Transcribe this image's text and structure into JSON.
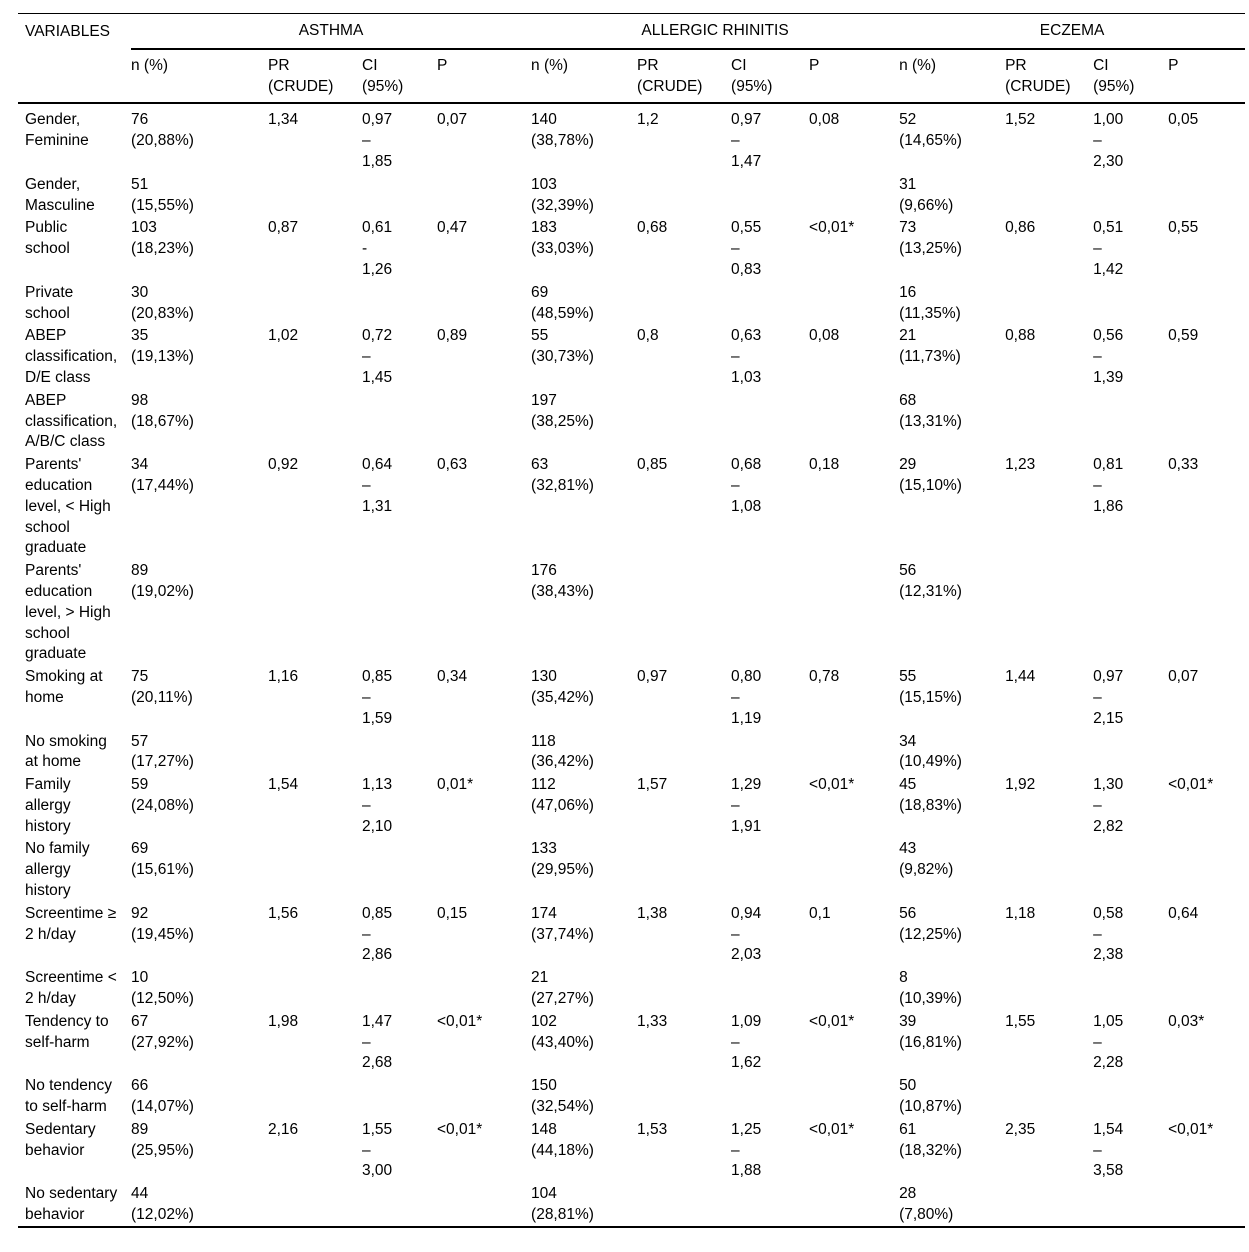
{
  "table": {
    "variables_header": "VARIABLES",
    "groups": [
      {
        "label": "ASTHMA"
      },
      {
        "label": "ALLERGIC RHINITIS"
      },
      {
        "label": "ECZEMA"
      }
    ],
    "sub_headers": [
      "n (%)",
      "PR\n(CRUDE)",
      "CI\n(95%)",
      "P"
    ],
    "rows": [
      {
        "variable": "Gender,\nFeminine",
        "cells": [
          "76\n(20,88%)",
          "1,34",
          "0,97\n–\n1,85",
          "0,07",
          "140\n(38,78%)",
          "1,2",
          "0,97\n–\n1,47",
          "0,08",
          "52\n(14,65%)",
          "1,52",
          "1,00\n–\n2,30",
          "0,05"
        ]
      },
      {
        "variable": "Gender,\nMasculine",
        "cells": [
          "51\n(15,55%)",
          "",
          "",
          "",
          "103\n(32,39%)",
          "",
          "",
          "",
          "31\n(9,66%)",
          "",
          "",
          ""
        ]
      },
      {
        "variable": "Public\nschool",
        "cells": [
          "103\n(18,23%)",
          "0,87",
          "0,61\n-\n1,26",
          "0,47",
          "183\n(33,03%)",
          "0,68",
          "0,55\n–\n0,83",
          "<0,01*",
          "73\n(13,25%)",
          "0,86",
          "0,51\n–\n1,42",
          "0,55"
        ]
      },
      {
        "variable": "Private\nschool",
        "cells": [
          "30\n(20,83%)",
          "",
          "",
          "",
          "69\n(48,59%)",
          "",
          "",
          "",
          "16\n(11,35%)",
          "",
          "",
          ""
        ]
      },
      {
        "variable": "ABEP\nclassification,\nD/E class",
        "cells": [
          "35\n(19,13%)",
          "1,02",
          "0,72\n–\n1,45",
          "0,89",
          "55\n(30,73%)",
          "0,8",
          "0,63\n–\n1,03",
          "0,08",
          "21\n(11,73%)",
          "0,88",
          "0,56\n–\n1,39",
          "0,59"
        ]
      },
      {
        "variable": "ABEP\nclassification,\nA/B/C class",
        "cells": [
          "98\n(18,67%)",
          "",
          "",
          "",
          "197\n(38,25%)",
          "",
          "",
          "",
          "68\n(13,31%)",
          "",
          "",
          ""
        ]
      },
      {
        "variable": "Parents'\neducation\nlevel, < High\nschool\ngraduate",
        "cells": [
          "34\n(17,44%)",
          "0,92",
          "0,64\n–\n1,31",
          "0,63",
          "63\n(32,81%)",
          "0,85",
          "0,68\n–\n1,08",
          "0,18",
          "29\n(15,10%)",
          "1,23",
          "0,81\n–\n1,86",
          "0,33"
        ]
      },
      {
        "variable": "Parents'\neducation\nlevel, > High\nschool\ngraduate",
        "cells": [
          "89\n(19,02%)",
          "",
          "",
          "",
          "176\n(38,43%)",
          "",
          "",
          "",
          "56\n(12,31%)",
          "",
          "",
          ""
        ]
      },
      {
        "variable": "Smoking at\nhome",
        "cells": [
          "75\n(20,11%)",
          "1,16",
          "0,85\n–\n1,59",
          "0,34",
          "130\n(35,42%)",
          "0,97",
          "0,80\n–\n1,19",
          "0,78",
          "55\n(15,15%)",
          "1,44",
          "0,97\n–\n2,15",
          "0,07"
        ]
      },
      {
        "variable": "No smoking\nat home",
        "cells": [
          "57\n(17,27%)",
          "",
          "",
          "",
          "118\n(36,42%)",
          "",
          "",
          "",
          "34\n(10,49%)",
          "",
          "",
          ""
        ]
      },
      {
        "variable": "Family\nallergy\nhistory",
        "cells": [
          "59\n(24,08%)",
          "1,54",
          "1,13\n–\n2,10",
          "0,01*",
          "112\n(47,06%)",
          "1,57",
          "1,29\n–\n1,91",
          "<0,01*",
          "45\n(18,83%)",
          "1,92",
          "1,30\n–\n2,82",
          "<0,01*"
        ]
      },
      {
        "variable": "No family\nallergy\nhistory",
        "cells": [
          "69\n(15,61%)",
          "",
          "",
          "",
          "133\n(29,95%)",
          "",
          "",
          "",
          "43\n(9,82%)",
          "",
          "",
          ""
        ]
      },
      {
        "variable": "Screentime ≥\n2 h/day",
        "cells": [
          "92\n(19,45%)",
          "1,56",
          "0,85\n–\n2,86",
          "0,15",
          "174\n(37,74%)",
          "1,38",
          "0,94\n–\n2,03",
          "0,1",
          "56\n(12,25%)",
          "1,18",
          "0,58\n–\n2,38",
          "0,64"
        ]
      },
      {
        "variable": "Screentime <\n2 h/day",
        "cells": [
          "10\n(12,50%)",
          "",
          "",
          "",
          "21\n(27,27%)",
          "",
          "",
          "",
          "8\n(10,39%)",
          "",
          "",
          ""
        ]
      },
      {
        "variable": "Tendency to\nself-harm",
        "cells": [
          "67\n(27,92%)",
          "1,98",
          "1,47\n–\n2,68",
          "<0,01*",
          "102\n(43,40%)",
          "1,33",
          "1,09\n–\n1,62",
          "<0,01*",
          "39\n(16,81%)",
          "1,55",
          "1,05\n–\n2,28",
          "0,03*"
        ]
      },
      {
        "variable": "No tendency\nto self-harm",
        "cells": [
          "66\n(14,07%)",
          "",
          "",
          "",
          "150\n(32,54%)",
          "",
          "",
          "",
          "50\n(10,87%)",
          "",
          "",
          ""
        ]
      },
      {
        "variable": "Sedentary\nbehavior",
        "cells": [
          "89\n(25,95%)",
          "2,16",
          "1,55\n–\n3,00",
          "<0,01*",
          "148\n(44,18%)",
          "1,53",
          "1,25\n–\n1,88",
          "<0,01*",
          "61\n(18,32%)",
          "2,35",
          "1,54\n–\n3,58",
          "<0,01*"
        ]
      },
      {
        "variable": "No sedentary\nbehavior",
        "cells": [
          "44\n(12,02%)",
          "",
          "",
          "",
          "104\n(28,81%)",
          "",
          "",
          "",
          "28\n(7,80%)",
          "",
          "",
          ""
        ]
      }
    ]
  }
}
